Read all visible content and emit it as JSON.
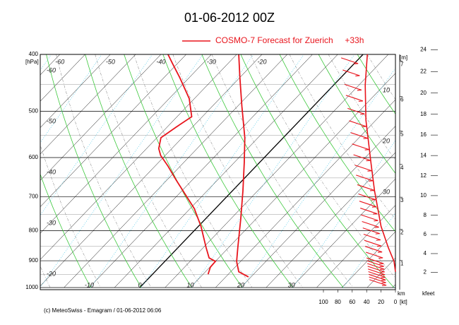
{
  "chart_data": {
    "type": "emagram",
    "title": "01-06-2012  00Z",
    "legend": "COSMO-7 Forecast for Zuerich     +33h",
    "footer": "(c) MeteoSwiss - Emagram  /  01-06-2012  06:06",
    "y_label": "[hPa]",
    "log_y": true,
    "ylim": [
      400,
      1000
    ],
    "yticks": [
      400,
      500,
      600,
      700,
      800,
      900,
      1000
    ],
    "xlim": [
      -19.7,
      50.6
    ],
    "xticks": [
      -10,
      0,
      10,
      20,
      30
    ],
    "top_ticks": [
      -60,
      -50,
      -40,
      -30,
      -20
    ],
    "left_labels": [
      -60,
      -50,
      -40,
      -30,
      -20
    ],
    "right_labels": [
      10,
      20,
      30
    ],
    "height_label": "[m]",
    "height_unit": "km",
    "height_ticks": [
      1,
      2,
      3,
      4,
      5,
      6,
      7
    ],
    "feet_unit": "kfeet",
    "feet_ticks": [
      2,
      4,
      6,
      8,
      10,
      12,
      14,
      16,
      18,
      20,
      22,
      24
    ],
    "wind_lim": [
      100,
      0
    ],
    "wind_ticks": [
      100,
      80,
      60,
      40,
      20,
      0
    ],
    "wind_unit": "[kt]",
    "series": [
      {
        "color": "#e8141c",
        "pressure": [
          959,
          940,
          902,
          854,
          764,
          684,
          612,
          555,
          490,
          438,
          400
        ],
        "temperature": [
          19.5,
          16.6,
          14.2,
          11.8,
          7.0,
          2.1,
          -3.0,
          -7.6,
          -14.2,
          -20.0,
          -24.6
        ]
      },
      {
        "color": "#e8141c",
        "pressure": [
          949,
          923,
          902,
          890,
          854,
          786,
          733,
          693,
          656,
          620,
          595,
          579,
          555,
          532,
          511,
          476,
          438,
          415,
          400
        ],
        "temperature": [
          11.0,
          10.1,
          10.0,
          8.1,
          5.5,
          0.5,
          -4.2,
          -8.7,
          -13.1,
          -17.5,
          -20.9,
          -22.6,
          -24.2,
          -23.2,
          -22.1,
          -26.0,
          -31.9,
          -35.9,
          -38.6
        ]
      }
    ],
    "wind": {
      "color": "#e8141c",
      "pressure": [
        400,
        451,
        518,
        612,
        684,
        786,
        854,
        902,
        940
      ],
      "speed": [
        39,
        42,
        41,
        34,
        29,
        20,
        10,
        2,
        0
      ]
    },
    "barbs": {
      "color": "#e8141c",
      "pressure": [
        410,
        430,
        455,
        475,
        500,
        525,
        550,
        575,
        600,
        625,
        650,
        675,
        700,
        720,
        740,
        760,
        780,
        800,
        820,
        840,
        860,
        880,
        900,
        910,
        920,
        930,
        940,
        950,
        960,
        970,
        980
      ]
    }
  }
}
